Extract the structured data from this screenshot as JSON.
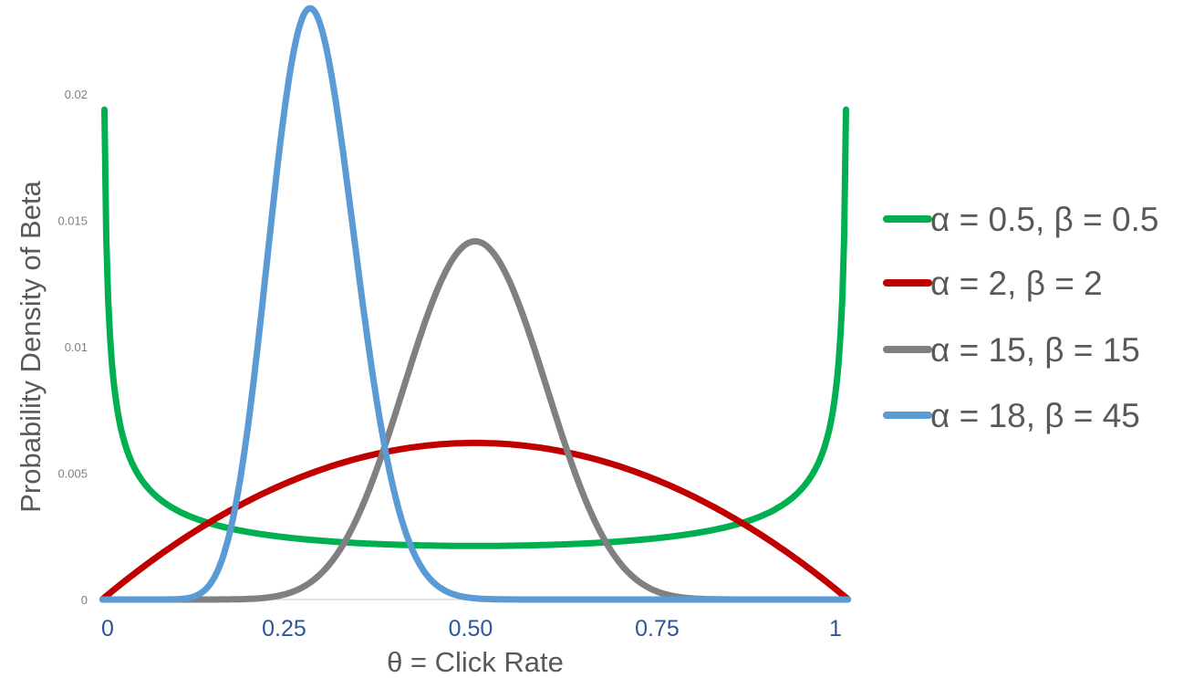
{
  "chart_data": {
    "type": "line",
    "title": "",
    "xlabel": "θ = Click Rate",
    "ylabel": "Probability Density of Beta",
    "xlim": [
      0,
      1
    ],
    "ylim": [
      0,
      0.02
    ],
    "x_ticks": [
      {
        "value": 0,
        "label": "0"
      },
      {
        "value": 0.25,
        "label": "0.25"
      },
      {
        "value": 0.5,
        "label": "0.50"
      },
      {
        "value": 0.75,
        "label": "0.75"
      },
      {
        "value": 1,
        "label": "1"
      }
    ],
    "y_ticks": [
      {
        "value": 0,
        "label": "0"
      },
      {
        "value": 0.005,
        "label": "0.005"
      },
      {
        "value": 0.01,
        "label": "0.01"
      },
      {
        "value": 0.015,
        "label": "0.015"
      },
      {
        "value": 0.02,
        "label": "0.02"
      }
    ],
    "grid": false,
    "legend_position": "right",
    "series": [
      {
        "name": "α = 0.5, β = 0.5",
        "alpha": 0.5,
        "beta": 0.5,
        "density_scale": 0.00333,
        "color": "#00B050",
        "approx_peak": 0.0195
      },
      {
        "name": "α = 2, β = 2",
        "alpha": 2,
        "beta": 2,
        "density_scale": 0.00413,
        "color": "#C00000",
        "approx_peak": 0.0062
      },
      {
        "name": "α = 15, β = 15",
        "alpha": 15,
        "beta": 15,
        "density_scale": 0.00327,
        "color": "#808080",
        "approx_peak": 0.0145
      },
      {
        "name": "α = 18, β = 45",
        "alpha": 18,
        "beta": 45,
        "density_scale": 0.00333,
        "color": "#5B9BD5",
        "approx_peak": 0.0235
      }
    ]
  }
}
